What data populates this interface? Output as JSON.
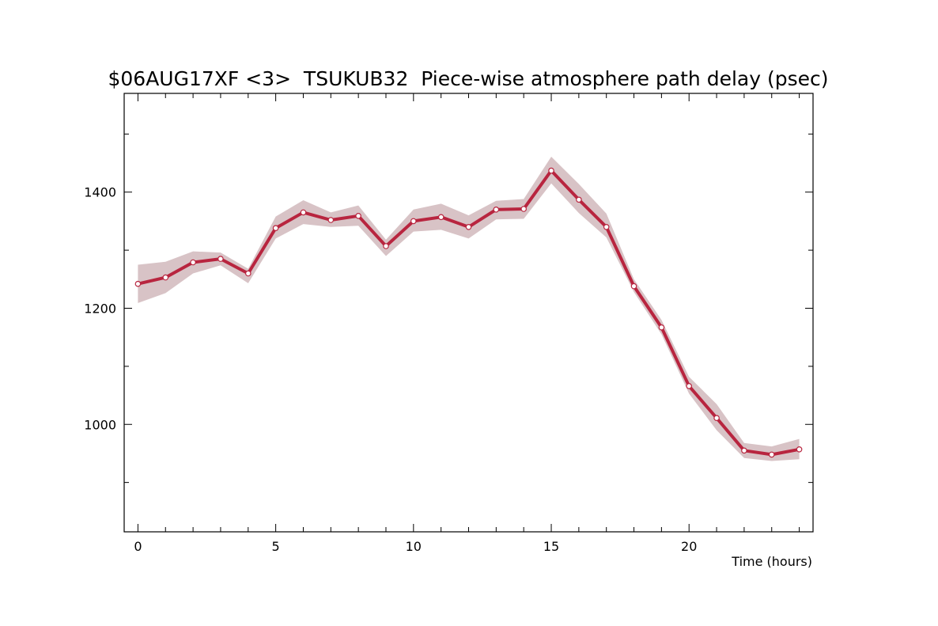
{
  "chart_data": {
    "type": "line",
    "title": "$06AUG17XF <3>  TSUKUB32  Piece-wise atmosphere path delay (psec)",
    "xlabel": "Time (hours)",
    "ylabel": "",
    "xlim": [
      -0.5,
      24.5
    ],
    "ylim": [
      815,
      1570
    ],
    "x_ticks": [
      0,
      5,
      10,
      15,
      20
    ],
    "y_ticks": [
      1000,
      1200,
      1400
    ],
    "y_minor_ticks": [
      900,
      1100,
      1300,
      1500
    ],
    "grid": false,
    "colors": {
      "line": "#b8253f",
      "band": "#d8c3c6",
      "marker_fill": "#ffffff"
    },
    "x": [
      0,
      1,
      2,
      3,
      4,
      5,
      6,
      7,
      8,
      9,
      10,
      11,
      12,
      13,
      14,
      15,
      16,
      17,
      18,
      19,
      20,
      21,
      22,
      23,
      24
    ],
    "y": [
      1242,
      1253,
      1279,
      1285,
      1260,
      1338,
      1365,
      1352,
      1359,
      1307,
      1350,
      1357,
      1340,
      1370,
      1371,
      1437,
      1387,
      1340,
      1238,
      1167,
      1066,
      1011,
      955,
      948,
      957
    ],
    "y_lower": [
      1209,
      1226,
      1260,
      1274,
      1243,
      1320,
      1345,
      1340,
      1342,
      1290,
      1332,
      1335,
      1320,
      1353,
      1354,
      1415,
      1364,
      1322,
      1228,
      1155,
      1053,
      990,
      942,
      937,
      940
    ],
    "y_upper": [
      1275,
      1280,
      1298,
      1296,
      1268,
      1358,
      1386,
      1365,
      1377,
      1318,
      1370,
      1380,
      1360,
      1385,
      1388,
      1461,
      1414,
      1363,
      1250,
      1180,
      1082,
      1035,
      968,
      962,
      975
    ]
  }
}
